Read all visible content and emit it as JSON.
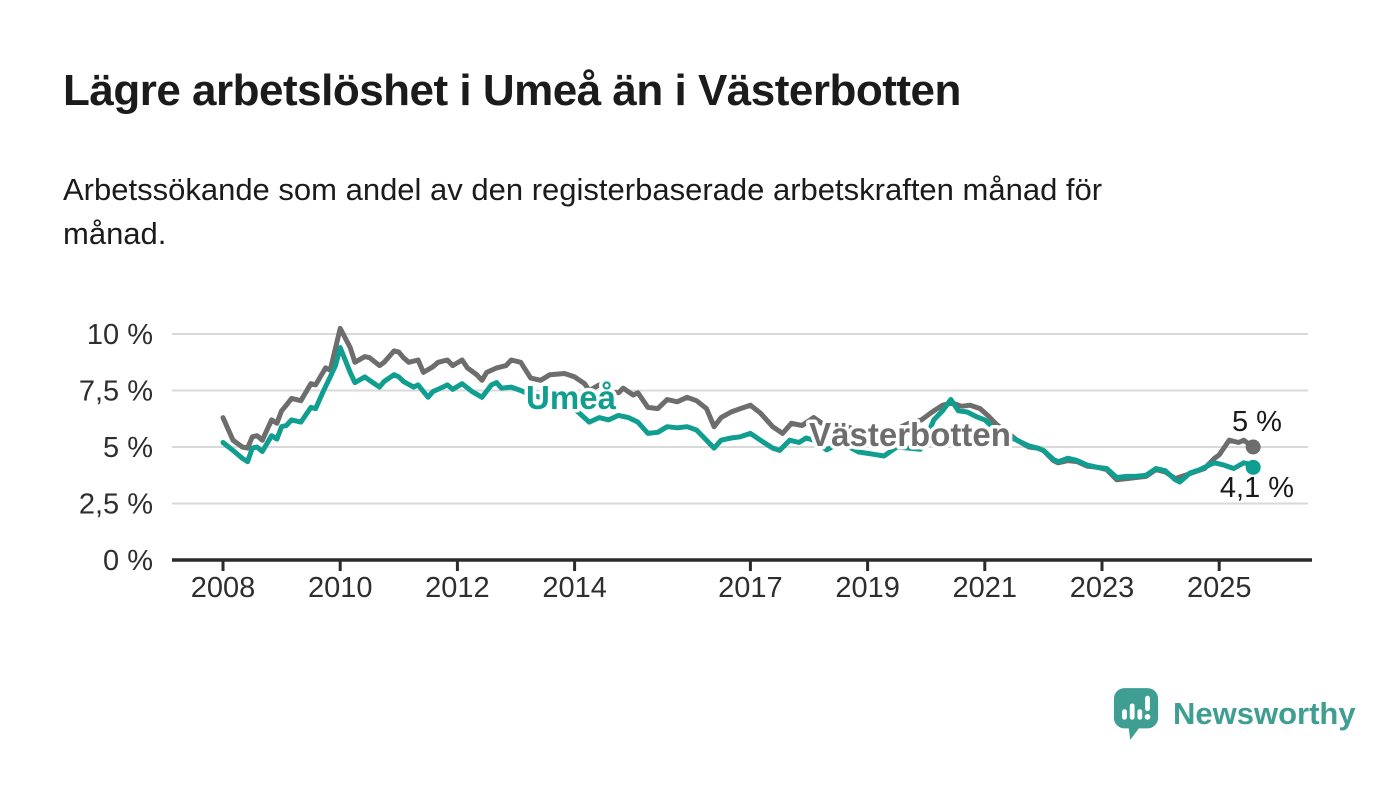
{
  "header": {
    "title": "Lägre arbetslöshet i Umeå än i Västerbotten",
    "subtitle_line1": "Arbetssökande som andel av den registerbaserade arbetskraften månad för",
    "subtitle_line2": "månad."
  },
  "footer": {
    "brand": "Newsworthy"
  },
  "colors": {
    "umea": "#0f9e90",
    "vasterbotten": "#6d6d6d",
    "brand_teal": "#3f9e92",
    "grid": "#d9d9d9",
    "axis": "#2b2b2b",
    "axis_text": "#2e2e2e",
    "annotation_text": "#1a1a1a"
  },
  "chart_data": {
    "type": "line",
    "title": "Lägre arbetslöshet i Umeå än i Västerbotten",
    "subtitle": "Arbetssökande som andel av den registerbaserade arbetskraften månad för månad.",
    "unit": "%",
    "grid": "horizontal",
    "legend_position": "inline-labels",
    "xlim": [
      2007.1,
      2026.6
    ],
    "ylim": [
      0,
      10.5
    ],
    "x_axis": {
      "tick_values": [
        2008,
        2010,
        2012,
        2014,
        2017,
        2019,
        2021,
        2023,
        2025
      ],
      "tick_labels": [
        "2008",
        "2010",
        "2012",
        "2014",
        "2017",
        "2019",
        "2021",
        "2023",
        "2025"
      ]
    },
    "y_axis": {
      "tick_values": [
        0,
        2.5,
        5,
        7.5,
        10
      ],
      "tick_labels": [
        "0 %",
        "2,5 %",
        "5 %",
        "7,5 %",
        "10 %"
      ]
    },
    "series": [
      {
        "name": "Västerbotten",
        "color": "#6d6d6d",
        "end_label": "5 %",
        "end_value": 5.0,
        "points": [
          [
            2008,
            6.3
          ],
          [
            2008.17,
            5.3
          ],
          [
            2008.33,
            5.0
          ],
          [
            2008.42,
            4.95
          ],
          [
            2008.5,
            5.45
          ],
          [
            2008.58,
            5.5
          ],
          [
            2008.67,
            5.3
          ],
          [
            2008.83,
            6.2
          ],
          [
            2008.92,
            6.05
          ],
          [
            2009,
            6.6
          ],
          [
            2009.08,
            6.85
          ],
          [
            2009.17,
            7.15
          ],
          [
            2009.33,
            7.05
          ],
          [
            2009.5,
            7.8
          ],
          [
            2009.58,
            7.75
          ],
          [
            2009.75,
            8.5
          ],
          [
            2009.83,
            8.4
          ],
          [
            2010,
            10.25
          ],
          [
            2010.17,
            9.4
          ],
          [
            2010.25,
            8.75
          ],
          [
            2010.42,
            9.0
          ],
          [
            2010.5,
            8.95
          ],
          [
            2010.67,
            8.6
          ],
          [
            2010.75,
            8.75
          ],
          [
            2010.92,
            9.25
          ],
          [
            2011,
            9.2
          ],
          [
            2011.08,
            8.95
          ],
          [
            2011.17,
            8.75
          ],
          [
            2011.33,
            8.85
          ],
          [
            2011.42,
            8.3
          ],
          [
            2011.58,
            8.55
          ],
          [
            2011.67,
            8.75
          ],
          [
            2011.83,
            8.85
          ],
          [
            2011.92,
            8.6
          ],
          [
            2012.08,
            8.85
          ],
          [
            2012.17,
            8.5
          ],
          [
            2012.33,
            8.2
          ],
          [
            2012.42,
            7.95
          ],
          [
            2012.5,
            8.3
          ],
          [
            2012.67,
            8.5
          ],
          [
            2012.83,
            8.6
          ],
          [
            2012.92,
            8.85
          ],
          [
            2013.08,
            8.75
          ],
          [
            2013.25,
            8.05
          ],
          [
            2013.42,
            7.95
          ],
          [
            2013.58,
            8.2
          ],
          [
            2013.83,
            8.25
          ],
          [
            2014,
            8.1
          ],
          [
            2014.17,
            7.8
          ],
          [
            2014.25,
            7.5
          ],
          [
            2014.42,
            7.75
          ],
          [
            2014.58,
            7.45
          ],
          [
            2014.75,
            7.4
          ],
          [
            2014.83,
            7.6
          ],
          [
            2015,
            7.3
          ],
          [
            2015.08,
            7.4
          ],
          [
            2015.25,
            6.75
          ],
          [
            2015.42,
            6.7
          ],
          [
            2015.58,
            7.1
          ],
          [
            2015.75,
            7.0
          ],
          [
            2015.92,
            7.2
          ],
          [
            2016.08,
            7.05
          ],
          [
            2016.25,
            6.7
          ],
          [
            2016.38,
            5.9
          ],
          [
            2016.5,
            6.3
          ],
          [
            2016.67,
            6.55
          ],
          [
            2016.83,
            6.7
          ],
          [
            2017,
            6.85
          ],
          [
            2017.17,
            6.5
          ],
          [
            2017.38,
            5.9
          ],
          [
            2017.55,
            5.6
          ],
          [
            2017.7,
            6.05
          ],
          [
            2017.88,
            5.95
          ],
          [
            2018.08,
            6.3
          ],
          [
            2018.3,
            5.9
          ],
          [
            2018.5,
            6.05
          ],
          [
            2018.7,
            5.85
          ],
          [
            2018.9,
            5.7
          ],
          [
            2019.08,
            5.45
          ],
          [
            2019.25,
            5.3
          ],
          [
            2019.42,
            5.65
          ],
          [
            2019.58,
            5.9
          ],
          [
            2019.75,
            6.1
          ],
          [
            2019.92,
            6.2
          ],
          [
            2020.1,
            6.55
          ],
          [
            2020.28,
            6.85
          ],
          [
            2020.45,
            6.95
          ],
          [
            2020.6,
            6.8
          ],
          [
            2020.75,
            6.85
          ],
          [
            2020.92,
            6.7
          ],
          [
            2021.05,
            6.4
          ],
          [
            2021.2,
            6.0
          ],
          [
            2021.4,
            5.6
          ],
          [
            2021.55,
            5.3
          ],
          [
            2021.75,
            5.0
          ],
          [
            2021.9,
            4.95
          ],
          [
            2022,
            4.85
          ],
          [
            2022.17,
            4.4
          ],
          [
            2022.25,
            4.3
          ],
          [
            2022.42,
            4.4
          ],
          [
            2022.58,
            4.35
          ],
          [
            2022.75,
            4.15
          ],
          [
            2022.92,
            4.1
          ],
          [
            2023.08,
            4.0
          ],
          [
            2023.25,
            3.55
          ],
          [
            2023.42,
            3.6
          ],
          [
            2023.58,
            3.65
          ],
          [
            2023.75,
            3.7
          ],
          [
            2023.92,
            4.0
          ],
          [
            2024.08,
            3.9
          ],
          [
            2024.25,
            3.6
          ],
          [
            2024.42,
            3.75
          ],
          [
            2024.58,
            3.9
          ],
          [
            2024.75,
            4.05
          ],
          [
            2024.92,
            4.5
          ],
          [
            2025,
            4.65
          ],
          [
            2025.17,
            5.3
          ],
          [
            2025.33,
            5.2
          ],
          [
            2025.42,
            5.3
          ],
          [
            2025.5,
            5.15
          ],
          [
            2025.58,
            5.0
          ]
        ]
      },
      {
        "name": "Umeå",
        "color": "#0f9e90",
        "end_label": "4,1 %",
        "end_value": 4.1,
        "points": [
          [
            2008,
            5.2
          ],
          [
            2008.17,
            4.85
          ],
          [
            2008.33,
            4.5
          ],
          [
            2008.42,
            4.35
          ],
          [
            2008.5,
            4.95
          ],
          [
            2008.58,
            5.0
          ],
          [
            2008.67,
            4.8
          ],
          [
            2008.83,
            5.5
          ],
          [
            2008.92,
            5.35
          ],
          [
            2009,
            5.9
          ],
          [
            2009.08,
            5.95
          ],
          [
            2009.17,
            6.2
          ],
          [
            2009.33,
            6.1
          ],
          [
            2009.5,
            6.75
          ],
          [
            2009.58,
            6.7
          ],
          [
            2009.7,
            7.4
          ],
          [
            2009.83,
            8.1
          ],
          [
            2009.92,
            8.6
          ],
          [
            2010,
            9.4
          ],
          [
            2010.17,
            8.3
          ],
          [
            2010.25,
            7.85
          ],
          [
            2010.42,
            8.1
          ],
          [
            2010.5,
            7.95
          ],
          [
            2010.67,
            7.65
          ],
          [
            2010.75,
            7.9
          ],
          [
            2010.92,
            8.2
          ],
          [
            2011,
            8.1
          ],
          [
            2011.08,
            7.9
          ],
          [
            2011.25,
            7.65
          ],
          [
            2011.33,
            7.75
          ],
          [
            2011.5,
            7.2
          ],
          [
            2011.58,
            7.45
          ],
          [
            2011.75,
            7.65
          ],
          [
            2011.83,
            7.75
          ],
          [
            2011.92,
            7.55
          ],
          [
            2012.08,
            7.8
          ],
          [
            2012.25,
            7.45
          ],
          [
            2012.42,
            7.2
          ],
          [
            2012.58,
            7.75
          ],
          [
            2012.67,
            7.85
          ],
          [
            2012.75,
            7.6
          ],
          [
            2012.92,
            7.65
          ],
          [
            2013.08,
            7.5
          ],
          [
            2013.25,
            7.3
          ],
          [
            2013.42,
            7.2
          ],
          [
            2013.58,
            7.45
          ],
          [
            2013.75,
            7.3
          ],
          [
            2013.83,
            7.15
          ],
          [
            2013.92,
            6.85
          ],
          [
            2014.08,
            6.5
          ],
          [
            2014.25,
            6.1
          ],
          [
            2014.42,
            6.3
          ],
          [
            2014.58,
            6.2
          ],
          [
            2014.75,
            6.4
          ],
          [
            2014.92,
            6.3
          ],
          [
            2015.08,
            6.1
          ],
          [
            2015.25,
            5.6
          ],
          [
            2015.42,
            5.65
          ],
          [
            2015.58,
            5.9
          ],
          [
            2015.75,
            5.85
          ],
          [
            2015.92,
            5.9
          ],
          [
            2016.08,
            5.75
          ],
          [
            2016.25,
            5.3
          ],
          [
            2016.38,
            4.95
          ],
          [
            2016.5,
            5.3
          ],
          [
            2016.67,
            5.4
          ],
          [
            2016.83,
            5.45
          ],
          [
            2017,
            5.6
          ],
          [
            2017.17,
            5.3
          ],
          [
            2017.38,
            4.95
          ],
          [
            2017.5,
            4.85
          ],
          [
            2017.67,
            5.3
          ],
          [
            2017.83,
            5.2
          ],
          [
            2017.95,
            5.4
          ],
          [
            2018.08,
            5.3
          ],
          [
            2018.3,
            4.87
          ],
          [
            2018.5,
            5.15
          ],
          [
            2018.65,
            5.05
          ],
          [
            2018.85,
            4.78
          ],
          [
            2019.05,
            4.7
          ],
          [
            2019.28,
            4.6
          ],
          [
            2019.5,
            5.0
          ],
          [
            2019.7,
            4.95
          ],
          [
            2019.9,
            4.9
          ],
          [
            2020,
            5.4
          ],
          [
            2020.13,
            6.2
          ],
          [
            2020.28,
            6.6
          ],
          [
            2020.42,
            7.1
          ],
          [
            2020.55,
            6.6
          ],
          [
            2020.7,
            6.55
          ],
          [
            2020.85,
            6.35
          ],
          [
            2021,
            6.2
          ],
          [
            2021.17,
            5.8
          ],
          [
            2021.35,
            5.55
          ],
          [
            2021.55,
            5.3
          ],
          [
            2021.75,
            5.05
          ],
          [
            2021.9,
            4.95
          ],
          [
            2022,
            4.85
          ],
          [
            2022.17,
            4.45
          ],
          [
            2022.25,
            4.35
          ],
          [
            2022.42,
            4.5
          ],
          [
            2022.58,
            4.4
          ],
          [
            2022.75,
            4.2
          ],
          [
            2022.92,
            4.1
          ],
          [
            2023.08,
            4.05
          ],
          [
            2023.25,
            3.65
          ],
          [
            2023.42,
            3.7
          ],
          [
            2023.58,
            3.7
          ],
          [
            2023.75,
            3.75
          ],
          [
            2023.92,
            4.05
          ],
          [
            2024.08,
            3.95
          ],
          [
            2024.25,
            3.55
          ],
          [
            2024.33,
            3.45
          ],
          [
            2024.5,
            3.85
          ],
          [
            2024.67,
            4.0
          ],
          [
            2024.83,
            4.2
          ],
          [
            2024.92,
            4.3
          ],
          [
            2025.08,
            4.2
          ],
          [
            2025.25,
            4.05
          ],
          [
            2025.42,
            4.3
          ],
          [
            2025.5,
            4.25
          ],
          [
            2025.58,
            4.1
          ]
        ]
      }
    ]
  }
}
